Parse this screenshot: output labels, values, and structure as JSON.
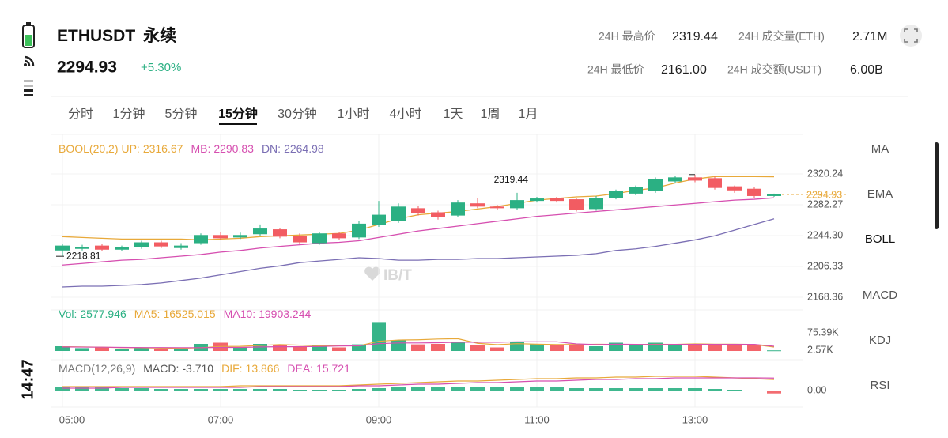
{
  "status_bar": {
    "time": "14:47"
  },
  "header": {
    "symbol": "ETHUSDT",
    "contract": "永续",
    "price": "2294.93",
    "change": "+5.30%",
    "stats": [
      {
        "label": "24H 最高价",
        "value": "2319.44"
      },
      {
        "label": "24H 成交量(ETH)",
        "value": "2.71M"
      },
      {
        "label": "24H 最低价",
        "value": "2161.00"
      },
      {
        "label": "24H 成交额(USDT)",
        "value": "6.00B"
      }
    ]
  },
  "tabs": {
    "items": [
      "分时",
      "1分钟",
      "5分钟",
      "15分钟",
      "30分钟",
      "1小时",
      "4小时",
      "1天",
      "1周",
      "1月"
    ],
    "selected": 3
  },
  "indicators": {
    "items": [
      "MA",
      "EMA",
      "BOLL",
      "MACD",
      "KDJ",
      "RSI"
    ],
    "active": 2
  },
  "watermark": "IB/T",
  "chart_data": [
    {
      "type": "candlestick",
      "indicator": "BOOL(20,2)",
      "categories": [
        "05:00",
        null,
        null,
        null,
        null,
        null,
        null,
        null,
        "07:00",
        null,
        null,
        null,
        null,
        null,
        null,
        null,
        "09:00",
        null,
        null,
        null,
        null,
        null,
        null,
        null,
        "11:00",
        null,
        null,
        null,
        null,
        null,
        null,
        null,
        "13:00",
        null,
        null,
        null,
        null
      ],
      "open": [
        2226,
        2228,
        2232,
        2227,
        2230,
        2236,
        2229,
        2235,
        2245,
        2242,
        2246,
        2252,
        2244,
        2235,
        2247,
        2242,
        2257,
        2262,
        2278,
        2273,
        2269,
        2284,
        2280,
        2278,
        2287,
        2290,
        2289,
        2277,
        2291,
        2296,
        2299,
        2311,
        2316,
        2315,
        2305,
        2302,
        2293
      ],
      "high": [
        2234,
        2233,
        2234,
        2232,
        2238,
        2238,
        2235,
        2247,
        2249,
        2248,
        2258,
        2254,
        2247,
        2249,
        2249,
        2262,
        2287,
        2284,
        2281,
        2275,
        2288,
        2290,
        2282,
        2297,
        2292,
        2292,
        2290,
        2293,
        2301,
        2306,
        2316,
        2318,
        2319.44,
        2317,
        2306,
        2304,
        2296
      ],
      "low": [
        2218.81,
        2226,
        2225,
        2225,
        2228,
        2229,
        2227,
        2233,
        2239,
        2240,
        2244,
        2241,
        2234,
        2233,
        2239,
        2240,
        2255,
        2260,
        2269,
        2264,
        2267,
        2278,
        2276,
        2276,
        2285,
        2285,
        2274,
        2275,
        2289,
        2294,
        2297,
        2309,
        2310,
        2301,
        2297,
        2291,
        2292
      ],
      "close": [
        2232,
        2230,
        2227,
        2230,
        2236,
        2231,
        2232,
        2245,
        2241,
        2245,
        2253,
        2243,
        2236,
        2247,
        2241,
        2259,
        2270,
        2280,
        2272,
        2267,
        2285,
        2280,
        2278,
        2288,
        2290,
        2287,
        2276,
        2291,
        2299,
        2304,
        2314,
        2316,
        2312,
        2303,
        2300,
        2293,
        2294.93
      ],
      "up_color": "#2bb083",
      "down_color": "#f25c62",
      "overlays": [
        {
          "name": "UP:",
          "color": "#e8a93a",
          "values": [
            2243,
            2242,
            2241,
            2240,
            2240,
            2240,
            2240,
            2239,
            2240,
            2241,
            2243,
            2244,
            2245,
            2246,
            2247,
            2251,
            2258,
            2265,
            2270,
            2272,
            2274,
            2277,
            2280,
            2284,
            2288,
            2290,
            2292,
            2293,
            2296,
            2300,
            2303,
            2309,
            2314,
            2317,
            2317,
            2317,
            2316.67
          ]
        },
        {
          "name": "MB:",
          "color": "#d64fb0",
          "values": [
            2208,
            2210,
            2212,
            2214,
            2215,
            2217,
            2219,
            2221,
            2224,
            2226,
            2229,
            2231,
            2233,
            2235,
            2236,
            2238,
            2242,
            2246,
            2250,
            2253,
            2256,
            2259,
            2262,
            2265,
            2268,
            2270,
            2272,
            2274,
            2276,
            2278,
            2280,
            2282,
            2284,
            2286,
            2288,
            2289,
            2290.83
          ]
        },
        {
          "name": "DN:",
          "color": "#7b6fb4",
          "values": [
            2181,
            2182,
            2182,
            2183,
            2184,
            2186,
            2189,
            2192,
            2196,
            2200,
            2204,
            2207,
            2211,
            2213,
            2215,
            2217,
            2216,
            2214,
            2214,
            2215,
            2215,
            2216,
            2216,
            2217,
            2218,
            2219,
            2220,
            2222,
            2226,
            2228,
            2231,
            2235,
            2239,
            2244,
            2251,
            2258,
            2264.98
          ]
        }
      ],
      "last_price_color": "#e8a93a",
      "ylim": [
        2159.6,
        2368.9
      ],
      "yticks": [
        {
          "value": 2320.24,
          "label": "2320.24"
        },
        {
          "value": 2282.27,
          "label": "2282.27"
        },
        {
          "value": 2244.3,
          "label": "2244.30"
        },
        {
          "value": 2206.33,
          "label": "2206.33"
        },
        {
          "value": 2168.36,
          "label": "2168.36"
        }
      ],
      "grid": true
    },
    {
      "type": "bar",
      "series": [
        {
          "name": "Vol:",
          "kind": "bar",
          "color": "#2bb083",
          "values": [
            20000,
            12000,
            15000,
            10000,
            12000,
            10000,
            8000,
            30000,
            35000,
            15000,
            30000,
            25000,
            18000,
            22000,
            15000,
            28000,
            122000,
            45000,
            28000,
            30000,
            35000,
            25000,
            15000,
            40000,
            30000,
            25000,
            28000,
            20000,
            35000,
            25000,
            35000,
            25000,
            30000,
            30000,
            28000,
            25000,
            2577.946
          ]
        },
        {
          "name": "MA5:",
          "kind": "line",
          "color": "#e8a93a",
          "values": [
            18000,
            17000,
            16000,
            14000,
            13800,
            11800,
            11000,
            14000,
            19000,
            19600,
            23600,
            27000,
            24600,
            22000,
            22000,
            21600,
            41000,
            46400,
            47600,
            50600,
            52000,
            32600,
            26600,
            31000,
            29000,
            27000,
            27600,
            28600,
            27600,
            26600,
            28600,
            28000,
            30000,
            29000,
            29000,
            27600,
            16525.015
          ]
        },
        {
          "name": "MA10:",
          "kind": "line",
          "color": "#d64fb0",
          "values": [
            17000,
            16500,
            16000,
            15000,
            14400,
            14400,
            14000,
            14000,
            15000,
            15000,
            17000,
            18000,
            18000,
            19000,
            21000,
            22000,
            31000,
            34000,
            34000,
            35000,
            37000,
            37000,
            37000,
            39000,
            39000,
            39000,
            30000,
            27000,
            29000,
            28000,
            27000,
            28000,
            28000,
            28000,
            28000,
            28000,
            19903.244
          ]
        }
      ],
      "ylim": [
        0,
        130000
      ],
      "yticks": [
        {
          "value": 75390,
          "label": "75.39K"
        },
        {
          "value": 2570,
          "label": "2.57K"
        }
      ]
    },
    {
      "type": "bar",
      "indicator": "MACD(12,26,9)",
      "series": [
        {
          "name": "MACD:",
          "kind": "bar",
          "color": "#555555",
          "pos_color": "#2bb083",
          "neg_color": "#f25c62",
          "values": [
            5,
            4,
            4,
            3,
            3,
            2,
            2,
            2,
            2,
            2,
            2,
            2,
            1,
            1,
            1,
            2,
            3,
            4,
            4,
            4,
            4,
            4,
            5,
            5,
            5,
            4,
            3,
            3,
            3,
            3,
            3,
            3,
            3,
            2,
            1,
            -1,
            -3.71
          ],
          "value_labels": [
            null,
            null,
            null,
            null,
            null,
            null,
            null,
            null,
            null,
            null,
            null,
            null,
            null,
            null,
            null,
            null,
            null,
            null,
            null,
            null,
            null,
            null,
            null,
            null,
            null,
            null,
            null,
            null,
            null,
            null,
            null,
            null,
            null,
            null,
            null,
            null,
            "-3.710"
          ]
        },
        {
          "name": "DIF:",
          "kind": "line",
          "color": "#e8a93a",
          "values": [
            5,
            5,
            5,
            5,
            5,
            5,
            5,
            5,
            5,
            6,
            6,
            6,
            6,
            6,
            6,
            7,
            8,
            9,
            10,
            11,
            12,
            12,
            13,
            14,
            15,
            15,
            16,
            16,
            17,
            17,
            18,
            18,
            18,
            17,
            16,
            15,
            13.866
          ]
        },
        {
          "name": "DEA:",
          "kind": "line",
          "color": "#d64fb0",
          "values": [
            3,
            3,
            3,
            4,
            4,
            4,
            4,
            4,
            4,
            4,
            5,
            5,
            5,
            5,
            5,
            6,
            6,
            7,
            8,
            8,
            9,
            10,
            10,
            11,
            12,
            12,
            13,
            14,
            14,
            15,
            15,
            16,
            16,
            16,
            16,
            16,
            15.721
          ]
        }
      ],
      "ylim": [
        -8,
        22
      ],
      "yticks": [
        {
          "value": 0,
          "label": "0.00"
        }
      ]
    }
  ]
}
